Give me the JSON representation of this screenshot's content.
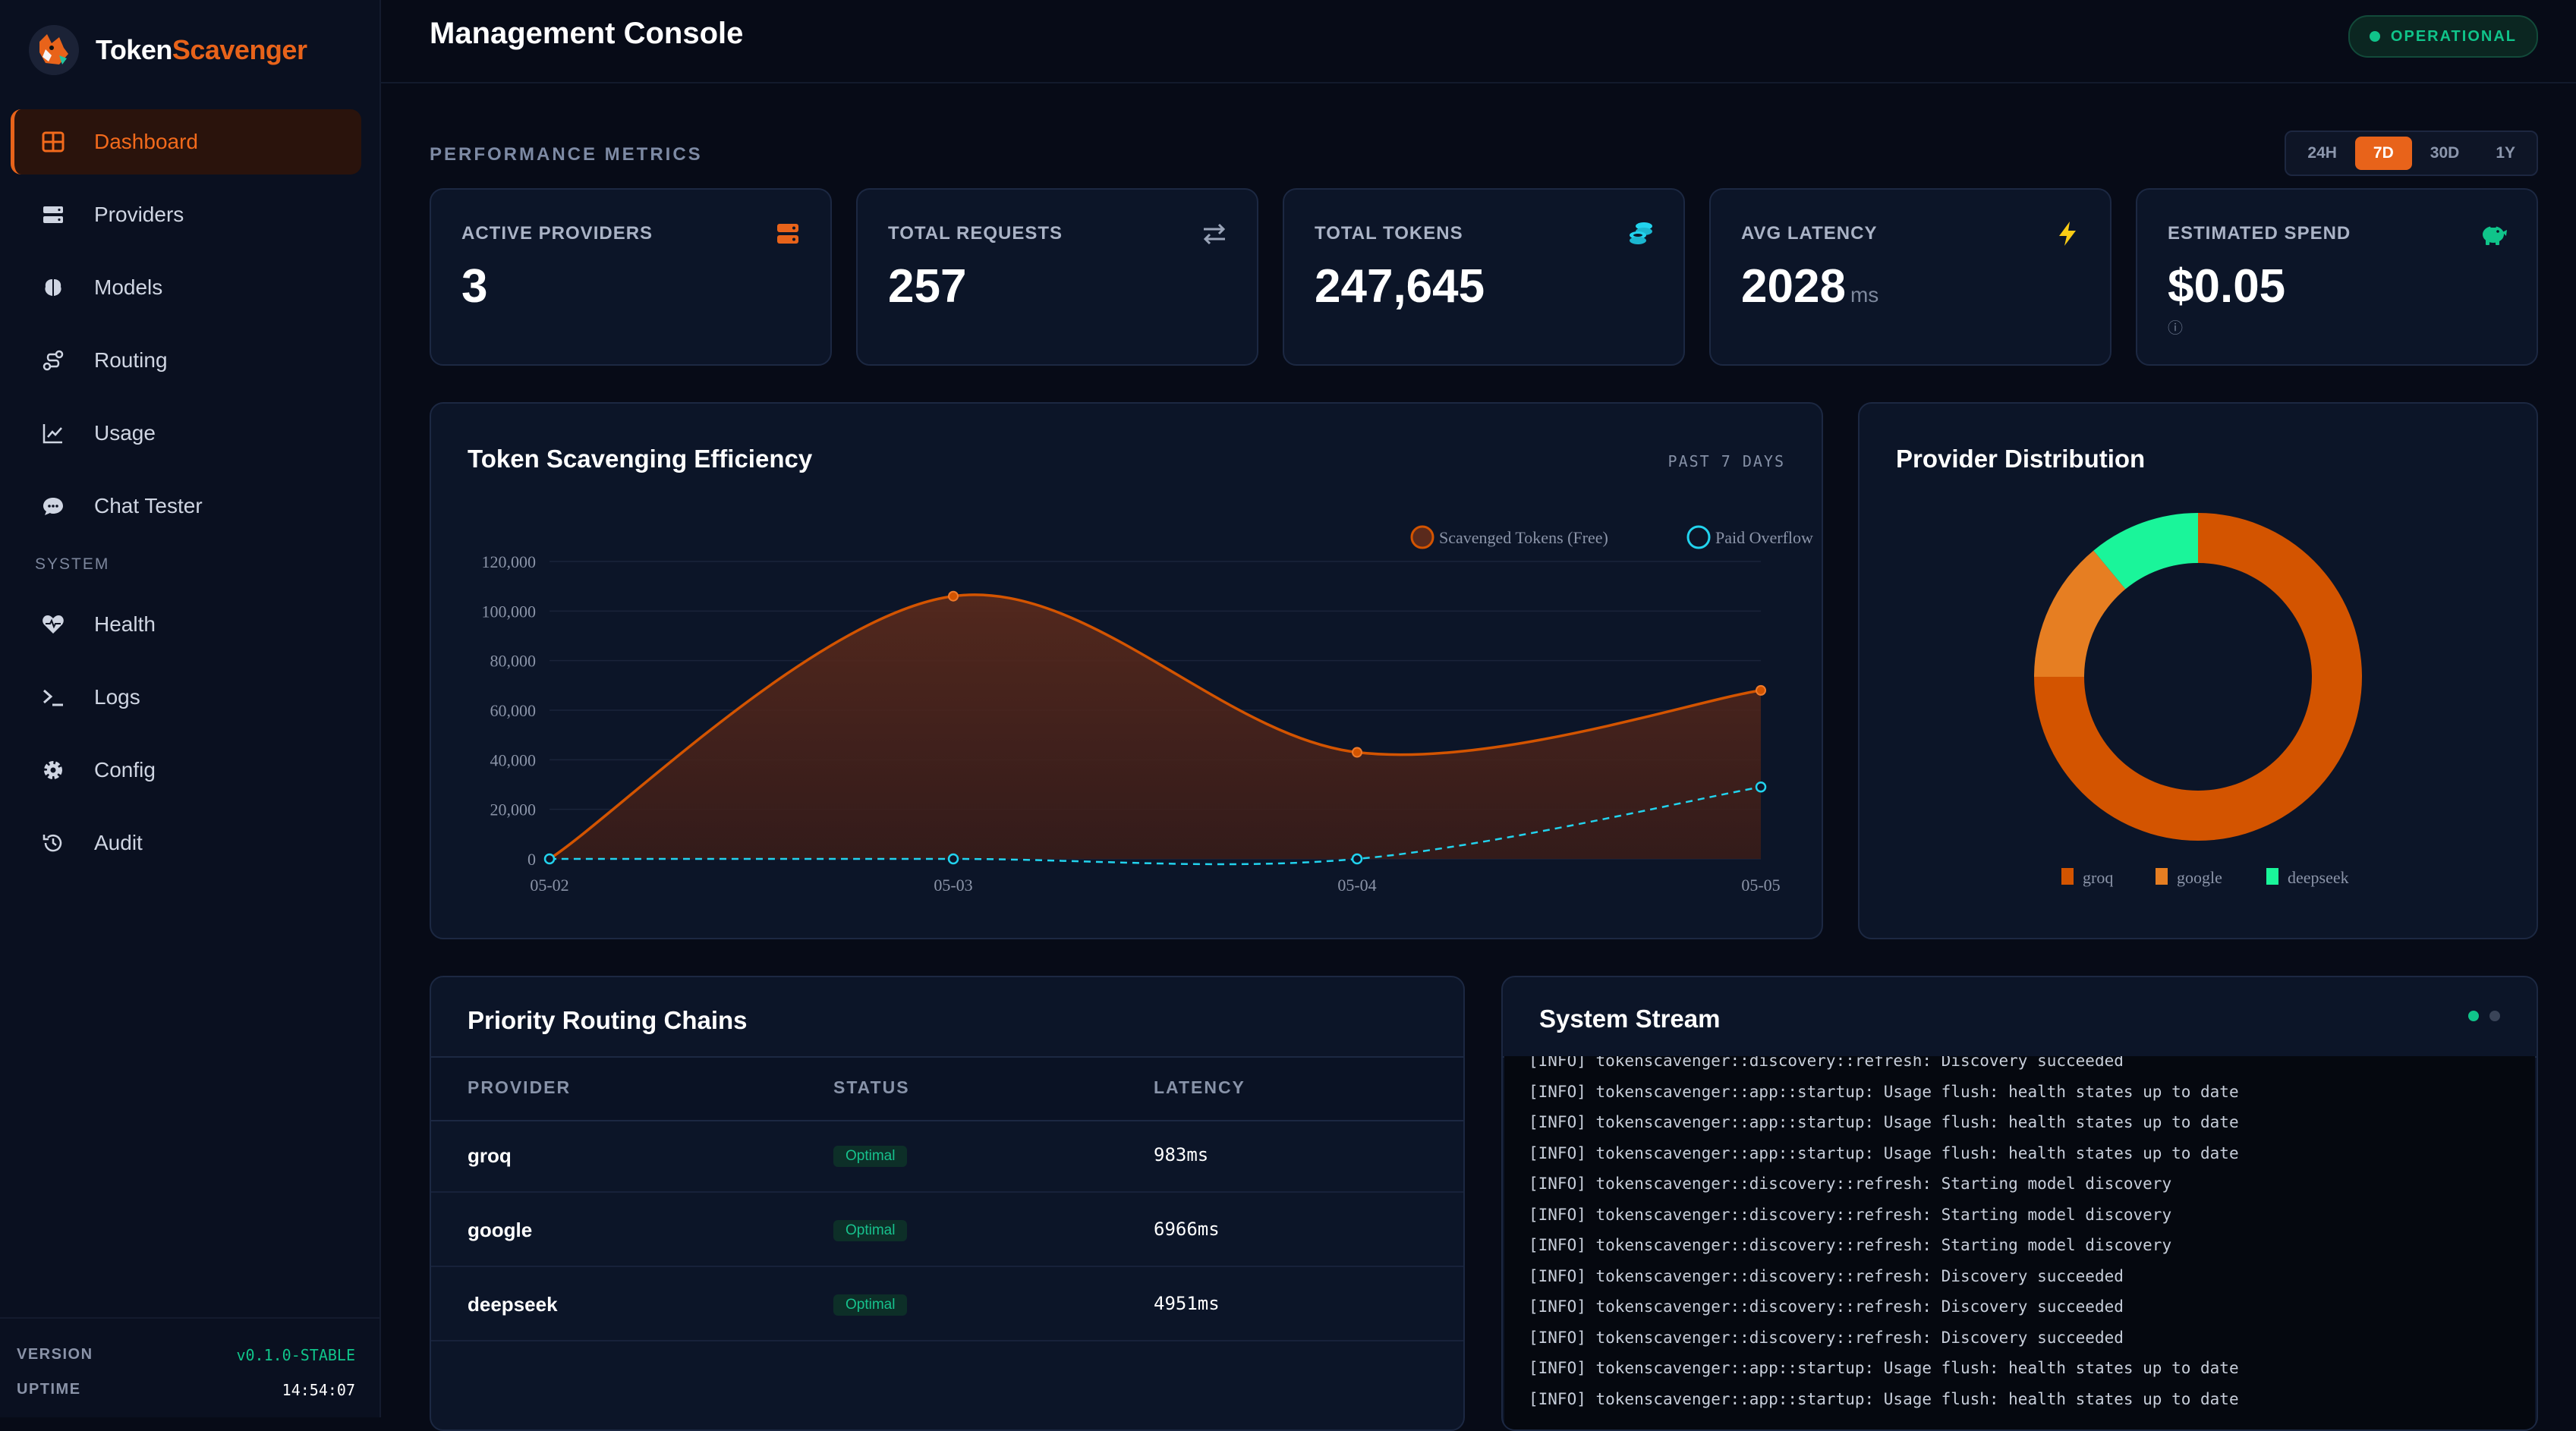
{
  "brand": {
    "word1": "Token",
    "word2": "Scavenger"
  },
  "nav": {
    "items": [
      {
        "label": "Dashboard",
        "icon": "grid-icon",
        "active": true
      },
      {
        "label": "Providers",
        "icon": "server-icon"
      },
      {
        "label": "Models",
        "icon": "brain-icon"
      },
      {
        "label": "Routing",
        "icon": "route-icon"
      },
      {
        "label": "Usage",
        "icon": "line-chart-icon"
      },
      {
        "label": "Chat Tester",
        "icon": "chat-icon"
      }
    ],
    "system_label": "SYSTEM",
    "system_items": [
      {
        "label": "Health",
        "icon": "heartbeat-icon"
      },
      {
        "label": "Logs",
        "icon": "terminal-icon"
      },
      {
        "label": "Config",
        "icon": "gear-icon"
      },
      {
        "label": "Audit",
        "icon": "history-icon"
      }
    ]
  },
  "footer": {
    "version_label": "VERSION",
    "version": "v0.1.0-STABLE",
    "uptime_label": "UPTIME",
    "uptime": "14:54:07"
  },
  "header": {
    "title": "Management Console",
    "status": "OPERATIONAL"
  },
  "metrics": {
    "section_label": "PERFORMANCE METRICS",
    "ranges": [
      "24H",
      "7D",
      "30D",
      "1Y"
    ],
    "active_range": "7D",
    "cards": [
      {
        "label": "ACTIVE PROVIDERS",
        "value": "3",
        "unit": "",
        "icon": "server-icon"
      },
      {
        "label": "TOTAL REQUESTS",
        "value": "257",
        "unit": "",
        "icon": "exchange-icon"
      },
      {
        "label": "TOTAL TOKENS",
        "value": "247,645",
        "unit": "",
        "icon": "coins-icon"
      },
      {
        "label": "AVG LATENCY",
        "value": "2028",
        "unit": "ms",
        "icon": "bolt-icon"
      },
      {
        "label": "ESTIMATED SPEND",
        "value": "$0.05",
        "unit": "",
        "icon": "piggy-bank-icon",
        "info": "ⓘ"
      }
    ],
    "colors": {
      "accent": "#e8631a",
      "success": "#10c48a",
      "cyan": "#22d3ee",
      "bolt": "#facc15"
    }
  },
  "efficiency": {
    "title": "Token Scavenging Efficiency",
    "subtitle": "PAST 7 DAYS"
  },
  "distribution": {
    "title": "Provider Distribution"
  },
  "chart_data": [
    {
      "type": "area",
      "title": "Token Scavenging Efficiency",
      "x": [
        "05-02",
        "05-03",
        "05-04",
        "05-05"
      ],
      "ylim": [
        0,
        120000
      ],
      "yticks": [
        0,
        20000,
        40000,
        60000,
        80000,
        100000,
        120000
      ],
      "ytick_labels": [
        "0",
        "20,000",
        "40,000",
        "60,000",
        "80,000",
        "100,000",
        "120,000"
      ],
      "legend_position": "top-right",
      "grid": true,
      "series": [
        {
          "name": "Scavenged Tokens (Free)",
          "values": [
            0,
            106000,
            43000,
            68000
          ],
          "color": "#d35400",
          "style": "solid-filled"
        },
        {
          "name": "Paid Overflow",
          "values": [
            0,
            0,
            0,
            29000
          ],
          "color": "#22d3ee",
          "style": "dashed"
        }
      ]
    },
    {
      "type": "pie",
      "title": "Provider Distribution",
      "donut": true,
      "legend_position": "bottom",
      "labels": [
        "groq",
        "google",
        "deepseek"
      ],
      "values": [
        75,
        14,
        11
      ],
      "colors": [
        "#d35400",
        "#e67e22",
        "#1af59a"
      ]
    }
  ],
  "routing": {
    "title": "Priority Routing Chains",
    "headers": [
      "PROVIDER",
      "STATUS",
      "LATENCY"
    ],
    "rows": [
      {
        "provider": "groq",
        "status": "Optimal",
        "latency": "983ms"
      },
      {
        "provider": "google",
        "status": "Optimal",
        "latency": "6966ms"
      },
      {
        "provider": "deepseek",
        "status": "Optimal",
        "latency": "4951ms"
      }
    ]
  },
  "stream": {
    "title": "System Stream",
    "lines": [
      "[INFO] tokenscavenger::discovery::refresh: Discovery succeeded",
      "[INFO] tokenscavenger::app::startup: Usage flush: health states up to date",
      "[INFO] tokenscavenger::app::startup: Usage flush: health states up to date",
      "[INFO] tokenscavenger::app::startup: Usage flush: health states up to date",
      "[INFO] tokenscavenger::discovery::refresh: Starting model discovery",
      "[INFO] tokenscavenger::discovery::refresh: Starting model discovery",
      "[INFO] tokenscavenger::discovery::refresh: Starting model discovery",
      "[INFO] tokenscavenger::discovery::refresh: Discovery succeeded",
      "[INFO] tokenscavenger::discovery::refresh: Discovery succeeded",
      "[INFO] tokenscavenger::discovery::refresh: Discovery succeeded",
      "[INFO] tokenscavenger::app::startup: Usage flush: health states up to date",
      "[INFO] tokenscavenger::app::startup: Usage flush: health states up to date"
    ]
  }
}
